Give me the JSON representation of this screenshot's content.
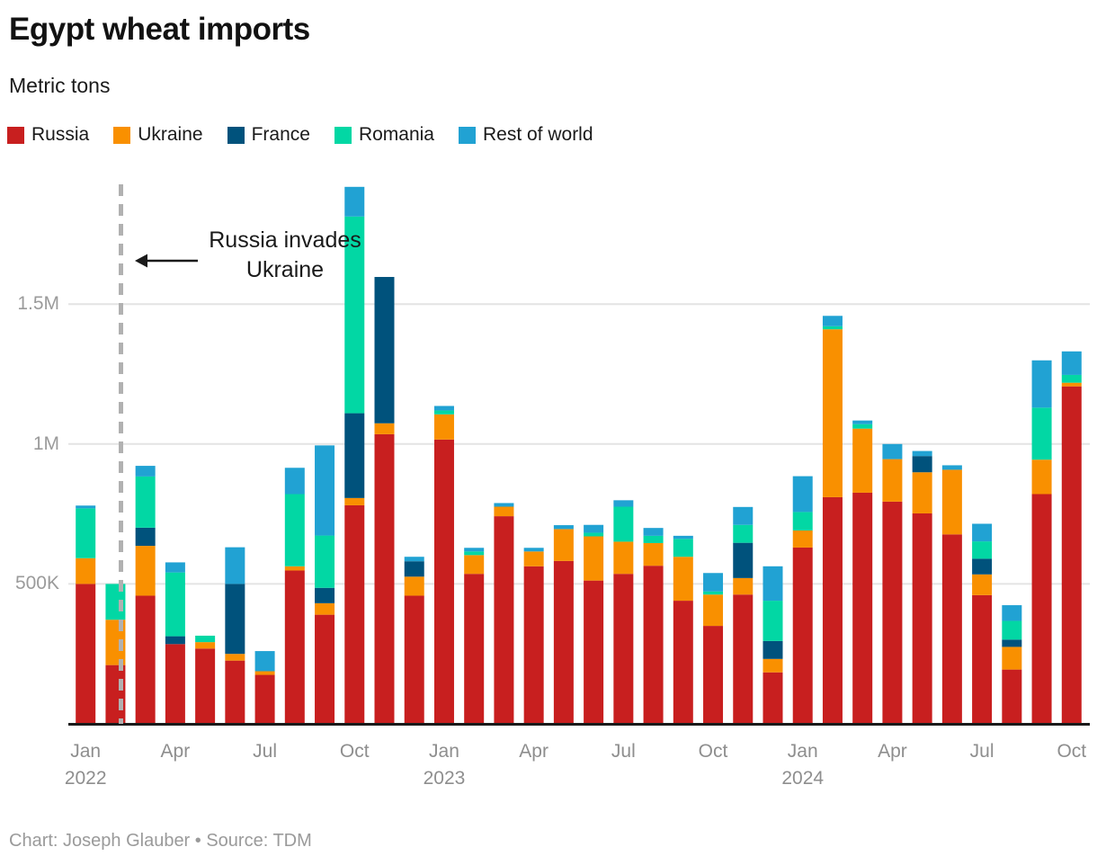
{
  "header": {
    "title": "Egypt wheat imports",
    "subtitle": "Metric tons"
  },
  "annotation": {
    "line1": "Russia invades",
    "line2": "Ukraine"
  },
  "footer": {
    "text": "Chart: Joseph Glauber • Source: TDM"
  },
  "colors": {
    "russia": "#c81f1f",
    "ukraine": "#f99000",
    "france": "#00527c",
    "romania": "#02d7a4",
    "rest_of_world": "#21a2d3",
    "gridline": "#e4e4e4",
    "axis_line": "#1a1a1a",
    "event_line": "#b1b1b1"
  },
  "chart_data": {
    "type": "bar",
    "stacked": true,
    "title": "Egypt wheat imports",
    "ylabel": "Metric tons",
    "values_unit": "thousand metric tons",
    "grid": true,
    "legend_position": "top",
    "ylim": [
      0,
      1930
    ],
    "categories": [
      "2022-01",
      "2022-02",
      "2022-03",
      "2022-04",
      "2022-05",
      "2022-06",
      "2022-07",
      "2022-08",
      "2022-09",
      "2022-10",
      "2022-11",
      "2022-12",
      "2023-01",
      "2023-02",
      "2023-03",
      "2023-04",
      "2023-05",
      "2023-06",
      "2023-07",
      "2023-08",
      "2023-09",
      "2023-10",
      "2023-11",
      "2023-12",
      "2024-01",
      "2024-02",
      "2024-03",
      "2024-04",
      "2024-05",
      "2024-06",
      "2024-07",
      "2024-08",
      "2024-09",
      "2024-10"
    ],
    "series": [
      {
        "name": "Russia",
        "color": "#c81f1f",
        "values": [
          500,
          210,
          458,
          285,
          269,
          226,
          175,
          548,
          390,
          781,
          1035,
          458,
          1016,
          536,
          742,
          563,
          582,
          512,
          536,
          565,
          440,
          350,
          462,
          184,
          630,
          810,
          826,
          794,
          752,
          677,
          460,
          194,
          821,
          1206
        ]
      },
      {
        "name": "Ukraine",
        "color": "#f99000",
        "values": [
          92,
          162,
          178,
          0,
          23,
          24,
          13,
          15,
          41,
          26,
          39,
          68,
          90,
          67,
          34,
          53,
          114,
          158,
          115,
          81,
          157,
          112,
          59,
          48,
          61,
          600,
          229,
          152,
          147,
          231,
          74,
          81,
          123,
          13
        ]
      },
      {
        "name": "France",
        "color": "#00527c",
        "values": [
          0,
          0,
          65,
          28,
          0,
          250,
          0,
          0,
          55,
          303,
          523,
          55,
          0,
          0,
          0,
          0,
          0,
          0,
          0,
          0,
          0,
          0,
          126,
          64,
          0,
          0,
          0,
          0,
          58,
          0,
          56,
          26,
          0,
          0
        ]
      },
      {
        "name": "Romania",
        "color": "#02d7a4",
        "values": [
          178,
          128,
          183,
          228,
          23,
          0,
          0,
          258,
          187,
          703,
          0,
          0,
          14,
          13,
          0,
          0,
          0,
          13,
          125,
          26,
          64,
          11,
          64,
          144,
          66,
          11,
          16,
          0,
          0,
          0,
          62,
          67,
          186,
          28
        ]
      },
      {
        "name": "Rest of world",
        "color": "#21a2d3",
        "values": [
          10,
          0,
          38,
          36,
          0,
          131,
          72,
          94,
          322,
          106,
          0,
          16,
          16,
          13,
          13,
          13,
          14,
          28,
          23,
          28,
          11,
          66,
          64,
          123,
          128,
          37,
          13,
          54,
          18,
          16,
          63,
          56,
          169,
          84
        ]
      }
    ],
    "y_axis_ticks": [
      {
        "value": 500,
        "label": "500K"
      },
      {
        "value": 1000,
        "label": "1M"
      },
      {
        "value": 1500,
        "label": "1.5M"
      }
    ],
    "x_axis_ticks": [
      {
        "index": 0,
        "label": "Jan",
        "year": "2022"
      },
      {
        "index": 3,
        "label": "Apr"
      },
      {
        "index": 6,
        "label": "Jul"
      },
      {
        "index": 9,
        "label": "Oct"
      },
      {
        "index": 12,
        "label": "Jan",
        "year": "2023"
      },
      {
        "index": 15,
        "label": "Apr"
      },
      {
        "index": 18,
        "label": "Jul"
      },
      {
        "index": 21,
        "label": "Oct"
      },
      {
        "index": 24,
        "label": "Jan",
        "year": "2024"
      },
      {
        "index": 27,
        "label": "Apr"
      },
      {
        "index": 30,
        "label": "Jul"
      },
      {
        "index": 33,
        "label": "Oct"
      }
    ],
    "event_line": {
      "between_categories": [
        "2022-02",
        "2022-03"
      ],
      "meaning": "Russia invades Ukraine"
    }
  }
}
